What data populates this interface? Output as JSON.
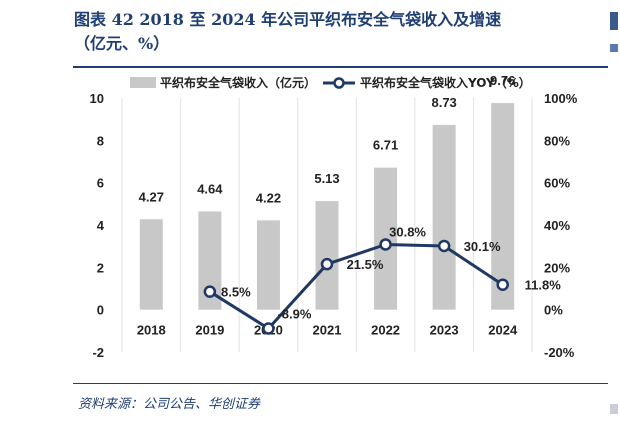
{
  "caption": {
    "line1": "图表 42 2018 至 2024 年公司平织布安全气袋收入及增速",
    "line2": "（亿元、%）"
  },
  "source": "资料来源：公司公告、华创证券",
  "colors": {
    "bar": "#c8c8c8",
    "line": "#1f3864",
    "caption": "#1f3f74"
  },
  "chart_data": {
    "type": "bar",
    "categories": [
      "2018",
      "2019",
      "2020",
      "2021",
      "2022",
      "2023",
      "2024"
    ],
    "series": [
      {
        "name": "平织布安全气袋收入（亿元）",
        "type": "bar",
        "axis": "left",
        "values": [
          4.27,
          4.64,
          4.22,
          5.13,
          6.71,
          8.73,
          9.76
        ],
        "labels": [
          "4.27",
          "4.64",
          "4.22",
          "5.13",
          "6.71",
          "8.73",
          "9.76"
        ]
      },
      {
        "name": "平织布安全气袋收入YOY（%）",
        "type": "line",
        "axis": "right",
        "values": [
          null,
          8.5,
          -8.9,
          21.5,
          30.8,
          30.1,
          11.8
        ],
        "labels": [
          "",
          "8.5%",
          "-8.9%",
          "21.5%",
          "30.8%",
          "30.1%",
          "11.8%"
        ]
      }
    ],
    "y_left": {
      "ylim": [
        -2,
        10
      ],
      "ticks": [
        "-2",
        "0",
        "2",
        "4",
        "6",
        "8",
        "10"
      ]
    },
    "y_right": {
      "ylim": [
        -20,
        100
      ],
      "ticks": [
        "-20%",
        "0%",
        "20%",
        "40%",
        "60%",
        "80%",
        "100%"
      ]
    },
    "grid": "vertical",
    "legend": "top"
  }
}
